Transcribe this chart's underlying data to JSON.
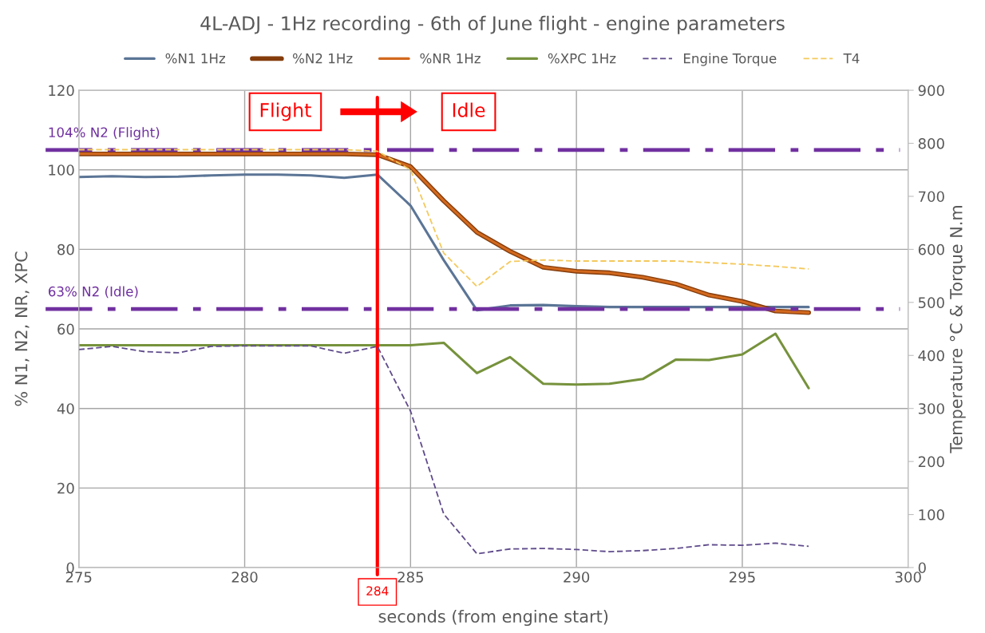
{
  "chart_data": {
    "type": "line",
    "title": "4L-ADJ - 1Hz recording - 6th of June flight - engine parameters",
    "xlabel": "seconds (from engine start)",
    "ylabel": "% N1, N2, NR, XPC",
    "y2label": "Temperature °C & Torque N.m",
    "x": [
      275,
      276,
      277,
      278,
      279,
      280,
      281,
      282,
      283,
      284,
      285,
      286,
      287,
      288,
      289,
      290,
      291,
      292,
      293,
      294,
      295,
      296,
      297
    ],
    "series": [
      {
        "name": "%N1 1Hz",
        "color": "#5b7596",
        "values": [
          98.2,
          98.4,
          98.2,
          98.3,
          98.6,
          98.8,
          98.8,
          98.6,
          98.0,
          98.8,
          91,
          77.3,
          64.7,
          65.9,
          66,
          65.7,
          65.5,
          65.5,
          65.5,
          65.5,
          65.5,
          65.5,
          65.5
        ]
      },
      {
        "name": "%N2 1Hz",
        "color": "#843c0c",
        "values": [
          104,
          104,
          104,
          104,
          104,
          104,
          104,
          104,
          104,
          103.8,
          100.8,
          92.2,
          84.3,
          79.5,
          75.5,
          74.5,
          74.1,
          73,
          71.3,
          68.5,
          66.9,
          64.5,
          64.1
        ]
      },
      {
        "name": "%NR 1Hz",
        "color": "#d2691e",
        "values": [
          104,
          104,
          104,
          104,
          104,
          104,
          104,
          104,
          104,
          103.8,
          100.8,
          92.2,
          84.3,
          79.5,
          75.5,
          74.5,
          74.1,
          73,
          71.3,
          68.5,
          66.9,
          64.5,
          64.1
        ]
      },
      {
        "name": "%XPC 1Hz",
        "color": "#76923c",
        "values": [
          55.9,
          55.9,
          55.9,
          55.9,
          55.9,
          55.9,
          55.9,
          55.9,
          55.9,
          55.9,
          55.9,
          56.5,
          48.9,
          52.9,
          46.2,
          46,
          46.2,
          47.4,
          52.3,
          52.2,
          53.6,
          58.8,
          45.1
        ]
      },
      {
        "name": "Engine Torque",
        "color": "#5f4b8b",
        "axis": "y2",
        "line_style": "dashed",
        "values": [
          411,
          417,
          407,
          405,
          417,
          418,
          418,
          418,
          404,
          417,
          295,
          101,
          26,
          35,
          36,
          34,
          30,
          32,
          36,
          43,
          42,
          46,
          40
        ]
      },
      {
        "name": "T4",
        "color": "#f4c95d",
        "axis": "y2",
        "line_style": "dashed",
        "values": [
          788,
          788,
          788,
          788,
          788,
          788,
          788,
          788,
          788,
          785,
          750,
          593,
          530,
          577,
          580,
          578,
          578,
          578,
          578,
          575,
          572,
          568,
          563
        ]
      }
    ],
    "xlim": [
      275,
      300
    ],
    "xticks": [
      275,
      280,
      285,
      290,
      295,
      300
    ],
    "ylim": [
      0,
      120
    ],
    "yticks": [
      0,
      20,
      40,
      60,
      80,
      100,
      120
    ],
    "y2lim": [
      0,
      900
    ],
    "y2ticks": [
      0,
      100,
      200,
      300,
      400,
      500,
      600,
      700,
      800,
      900
    ],
    "grid": true,
    "legend": "top",
    "ref_lines": [
      {
        "axis": "y",
        "value": 105,
        "label": "104% N2 (Flight)",
        "color": "#7030a0",
        "line_style": "dashed"
      },
      {
        "axis": "y",
        "value": 65,
        "label": "63% N2 (Idle)",
        "color": "#7030a0",
        "line_style": "dashed"
      },
      {
        "axis": "x",
        "value": 284,
        "label": "284",
        "color": "#ff0000",
        "line_style": "solid"
      }
    ],
    "annotations": [
      "Flight",
      "Idle"
    ]
  }
}
